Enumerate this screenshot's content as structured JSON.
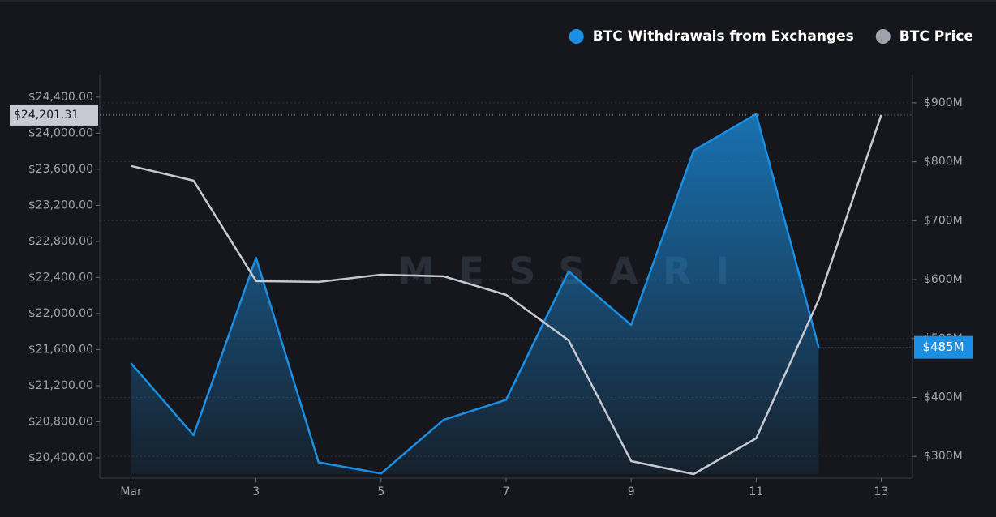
{
  "chart_data": {
    "type": "line",
    "watermark": "MESSARI",
    "x": [
      1,
      2,
      3,
      4,
      5,
      6,
      7,
      8,
      9,
      10,
      11,
      12,
      13
    ],
    "xlim": [
      0.5,
      13.5
    ],
    "xticks": [
      {
        "value": 1,
        "label": "Mar"
      },
      3,
      5,
      7,
      9,
      11,
      13
    ],
    "ylim": [
      20220,
      24650
    ],
    "yticks": [
      {
        "value": 20400,
        "label": "$20,400.00"
      },
      {
        "value": 20800,
        "label": "$20,800.00"
      },
      {
        "value": 21200,
        "label": "$21,200.00"
      },
      {
        "value": 21600,
        "label": "$21,600.00"
      },
      {
        "value": 22000,
        "label": "$22,000.00"
      },
      {
        "value": 22400,
        "label": "$22,400.00"
      },
      {
        "value": 22800,
        "label": "$22,800.00"
      },
      {
        "value": 23200,
        "label": "$23,200.00"
      },
      {
        "value": 23600,
        "label": "$23,600.00"
      },
      {
        "value": 24000,
        "label": "$24,000.00"
      },
      {
        "value": 24400,
        "label": "$24,400.00"
      }
    ],
    "y2lim": [
      270,
      948
    ],
    "y2ticks": [
      {
        "value": 300,
        "label": "$300M"
      },
      {
        "value": 400,
        "label": "$400M"
      },
      {
        "value": 500,
        "label": "$500M"
      },
      {
        "value": 600,
        "label": "$600M"
      },
      {
        "value": 700,
        "label": "$700M"
      },
      {
        "value": 800,
        "label": "$800M"
      },
      {
        "value": 900,
        "label": "$900M"
      }
    ],
    "grid": true,
    "legend": "top-right",
    "series": [
      {
        "name": "BTC Withdrawals from Exchanges",
        "color": "#1a8fe3",
        "axis": "y2",
        "values": [
          458,
          336,
          637,
          290,
          271,
          362,
          396,
          614,
          523,
          819,
          881,
          485,
          null
        ],
        "last_label": "$485M"
      },
      {
        "name": "BTC Price",
        "color": "#c8cad3",
        "values": [
          23636,
          23474,
          22360,
          22351,
          22431,
          22413,
          22207,
          21703,
          20364,
          20220,
          20616,
          22153,
          24201.31
        ],
        "last_label": "$24,201.31"
      }
    ]
  }
}
